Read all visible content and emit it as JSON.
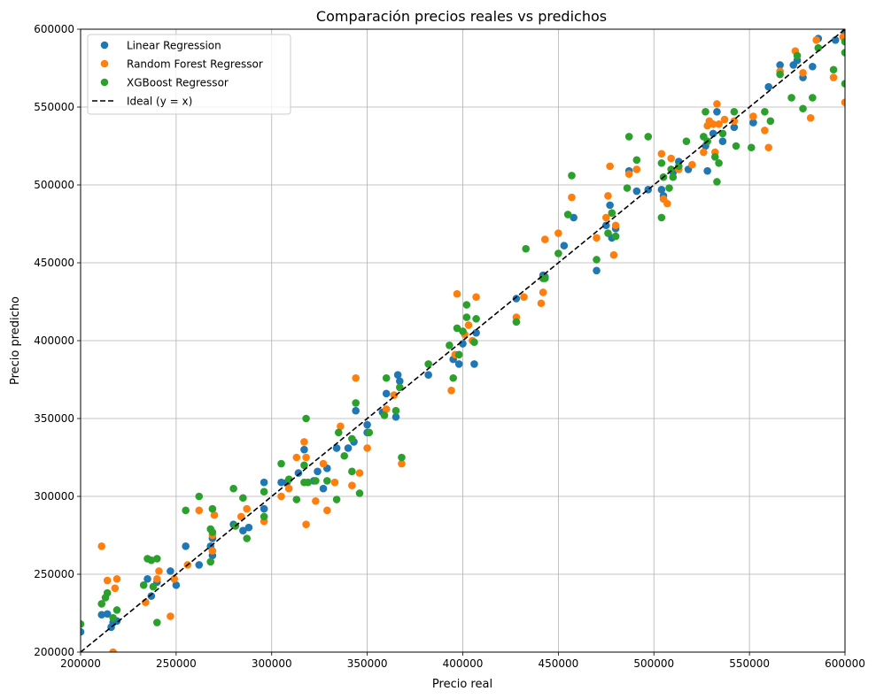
{
  "chart_data": {
    "type": "scatter",
    "title": "Comparación precios reales vs predichos",
    "xlabel": "Precio real",
    "ylabel": "Precio predicho",
    "xlim": [
      200000,
      600000
    ],
    "ylim": [
      200000,
      600000
    ],
    "xticks": [
      200000,
      250000,
      300000,
      350000,
      400000,
      450000,
      500000,
      550000,
      600000
    ],
    "yticks": [
      200000,
      250000,
      300000,
      350000,
      400000,
      450000,
      500000,
      550000,
      600000
    ],
    "grid": true,
    "legend_position": "top-left",
    "series": [
      {
        "name": "Linear Regression",
        "color": "#1f77b4",
        "points": [
          [
            200000,
            213000
          ],
          [
            211000,
            224000
          ],
          [
            214000,
            224500
          ],
          [
            216000,
            216000
          ],
          [
            217000,
            219000
          ],
          [
            219000,
            220000
          ],
          [
            235000,
            247000
          ],
          [
            237000,
            236000
          ],
          [
            240000,
            245000
          ],
          [
            247000,
            252000
          ],
          [
            250000,
            243000
          ],
          [
            255000,
            268000
          ],
          [
            262000,
            256000
          ],
          [
            268000,
            268000
          ],
          [
            269000,
            273000
          ],
          [
            269000,
            262000
          ],
          [
            280000,
            282000
          ],
          [
            285000,
            278000
          ],
          [
            288000,
            280000
          ],
          [
            296000,
            309000
          ],
          [
            296000,
            292000
          ],
          [
            305000,
            309000
          ],
          [
            308000,
            309000
          ],
          [
            314000,
            315000
          ],
          [
            317000,
            330000
          ],
          [
            322000,
            310000
          ],
          [
            324000,
            316000
          ],
          [
            327000,
            305000
          ],
          [
            329000,
            318000
          ],
          [
            334000,
            331000
          ],
          [
            340000,
            331000
          ],
          [
            343000,
            335000
          ],
          [
            344000,
            355000
          ],
          [
            350000,
            346000
          ],
          [
            350000,
            341000
          ],
          [
            358000,
            354000
          ],
          [
            360000,
            366000
          ],
          [
            365000,
            351000
          ],
          [
            366000,
            378000
          ],
          [
            367000,
            374000
          ],
          [
            382000,
            378000
          ],
          [
            395000,
            388000
          ],
          [
            398000,
            385000
          ],
          [
            400000,
            398000
          ],
          [
            406000,
            385000
          ],
          [
            407000,
            405000
          ],
          [
            428000,
            427000
          ],
          [
            442000,
            442000
          ],
          [
            443000,
            441000
          ],
          [
            453000,
            461000
          ],
          [
            458000,
            479000
          ],
          [
            470000,
            445000
          ],
          [
            475000,
            474000
          ],
          [
            477000,
            487000
          ],
          [
            478000,
            466000
          ],
          [
            480000,
            472000
          ],
          [
            487000,
            509000
          ],
          [
            491000,
            496000
          ],
          [
            497000,
            497000
          ],
          [
            504000,
            497000
          ],
          [
            505000,
            493000
          ],
          [
            510000,
            508000
          ],
          [
            513000,
            515000
          ],
          [
            518000,
            510000
          ],
          [
            527000,
            525000
          ],
          [
            528000,
            509000
          ],
          [
            531000,
            533000
          ],
          [
            533000,
            547000
          ],
          [
            536000,
            528000
          ],
          [
            542000,
            537000
          ],
          [
            552000,
            540000
          ],
          [
            560000,
            563000
          ],
          [
            566000,
            577000
          ],
          [
            573000,
            577000
          ],
          [
            575000,
            580000
          ],
          [
            578000,
            569000
          ],
          [
            583000,
            576000
          ],
          [
            586000,
            594000
          ],
          [
            595000,
            593000
          ],
          [
            600000,
            598000
          ]
        ]
      },
      {
        "name": "Random Forest Regressor",
        "color": "#ff7f0e",
        "points": [
          [
            211000,
            268000
          ],
          [
            214000,
            246000
          ],
          [
            217000,
            200000
          ],
          [
            218000,
            241000
          ],
          [
            219000,
            247000
          ],
          [
            234000,
            232000
          ],
          [
            240000,
            247000
          ],
          [
            241000,
            252000
          ],
          [
            247000,
            223000
          ],
          [
            249000,
            247000
          ],
          [
            256000,
            256000
          ],
          [
            262000,
            291000
          ],
          [
            269000,
            275000
          ],
          [
            269000,
            265000
          ],
          [
            270000,
            288000
          ],
          [
            284000,
            287000
          ],
          [
            287000,
            292000
          ],
          [
            296000,
            284000
          ],
          [
            305000,
            300000
          ],
          [
            309000,
            305000
          ],
          [
            313000,
            325000
          ],
          [
            317000,
            335000
          ],
          [
            318000,
            282000
          ],
          [
            318000,
            325000
          ],
          [
            323000,
            297000
          ],
          [
            327000,
            321000
          ],
          [
            329000,
            291000
          ],
          [
            333000,
            309000
          ],
          [
            336000,
            345000
          ],
          [
            342000,
            307000
          ],
          [
            344000,
            376000
          ],
          [
            346000,
            315000
          ],
          [
            350000,
            331000
          ],
          [
            360000,
            356000
          ],
          [
            364000,
            365000
          ],
          [
            368000,
            321000
          ],
          [
            394000,
            368000
          ],
          [
            396000,
            391000
          ],
          [
            397000,
            430000
          ],
          [
            401000,
            404000
          ],
          [
            403000,
            410000
          ],
          [
            405000,
            400000
          ],
          [
            407000,
            428000
          ],
          [
            428000,
            415000
          ],
          [
            432000,
            428000
          ],
          [
            441000,
            424000
          ],
          [
            442000,
            431000
          ],
          [
            443000,
            465000
          ],
          [
            450000,
            469000
          ],
          [
            457000,
            492000
          ],
          [
            470000,
            466000
          ],
          [
            475000,
            479000
          ],
          [
            476000,
            493000
          ],
          [
            477000,
            512000
          ],
          [
            479000,
            455000
          ],
          [
            480000,
            474000
          ],
          [
            487000,
            507000
          ],
          [
            491000,
            510000
          ],
          [
            504000,
            520000
          ],
          [
            505000,
            491000
          ],
          [
            507000,
            488000
          ],
          [
            509000,
            517000
          ],
          [
            513000,
            510000
          ],
          [
            520000,
            513000
          ],
          [
            526000,
            521000
          ],
          [
            528000,
            538000
          ],
          [
            529000,
            541000
          ],
          [
            531000,
            539000
          ],
          [
            532000,
            521000
          ],
          [
            533000,
            552000
          ],
          [
            534000,
            539000
          ],
          [
            537000,
            542000
          ],
          [
            542000,
            541000
          ],
          [
            552000,
            544000
          ],
          [
            558000,
            535000
          ],
          [
            560000,
            524000
          ],
          [
            566000,
            573000
          ],
          [
            574000,
            586000
          ],
          [
            578000,
            572000
          ],
          [
            582000,
            543000
          ],
          [
            585000,
            593000
          ],
          [
            594000,
            569000
          ],
          [
            599000,
            595000
          ],
          [
            600000,
            553000
          ]
        ]
      },
      {
        "name": "XGBoost Regressor",
        "color": "#2ca02c",
        "points": [
          [
            200000,
            218000
          ],
          [
            211000,
            231000
          ],
          [
            213000,
            235000
          ],
          [
            214000,
            238000
          ],
          [
            217000,
            222000
          ],
          [
            219000,
            227000
          ],
          [
            233000,
            243000
          ],
          [
            235000,
            260000
          ],
          [
            237000,
            259000
          ],
          [
            238000,
            242000
          ],
          [
            240000,
            260000
          ],
          [
            240000,
            219000
          ],
          [
            255000,
            291000
          ],
          [
            262000,
            300000
          ],
          [
            268000,
            258000
          ],
          [
            268000,
            279000
          ],
          [
            269000,
            292000
          ],
          [
            269000,
            277000
          ],
          [
            280000,
            305000
          ],
          [
            281000,
            281000
          ],
          [
            285000,
            299000
          ],
          [
            287000,
            273000
          ],
          [
            296000,
            287000
          ],
          [
            296000,
            303000
          ],
          [
            305000,
            321000
          ],
          [
            309000,
            311000
          ],
          [
            313000,
            298000
          ],
          [
            317000,
            309000
          ],
          [
            317000,
            320000
          ],
          [
            318000,
            350000
          ],
          [
            319000,
            309000
          ],
          [
            323000,
            310000
          ],
          [
            329000,
            310000
          ],
          [
            334000,
            298000
          ],
          [
            335000,
            341000
          ],
          [
            338000,
            326000
          ],
          [
            342000,
            337000
          ],
          [
            342000,
            316000
          ],
          [
            344000,
            360000
          ],
          [
            346000,
            302000
          ],
          [
            351000,
            341000
          ],
          [
            359000,
            352000
          ],
          [
            360000,
            376000
          ],
          [
            365000,
            355000
          ],
          [
            367000,
            370000
          ],
          [
            368000,
            325000
          ],
          [
            382000,
            385000
          ],
          [
            393000,
            397000
          ],
          [
            395000,
            376000
          ],
          [
            397000,
            408000
          ],
          [
            398000,
            391000
          ],
          [
            400000,
            406000
          ],
          [
            402000,
            415000
          ],
          [
            402000,
            423000
          ],
          [
            406000,
            399000
          ],
          [
            407000,
            414000
          ],
          [
            428000,
            412000
          ],
          [
            433000,
            459000
          ],
          [
            442000,
            440000
          ],
          [
            443000,
            440000
          ],
          [
            450000,
            456000
          ],
          [
            455000,
            481000
          ],
          [
            457000,
            506000
          ],
          [
            470000,
            452000
          ],
          [
            476000,
            469000
          ],
          [
            478000,
            482000
          ],
          [
            480000,
            467000
          ],
          [
            486000,
            498000
          ],
          [
            487000,
            531000
          ],
          [
            491000,
            516000
          ],
          [
            497000,
            531000
          ],
          [
            504000,
            479000
          ],
          [
            504000,
            514000
          ],
          [
            505000,
            505000
          ],
          [
            508000,
            498000
          ],
          [
            509000,
            510000
          ],
          [
            510000,
            505000
          ],
          [
            513000,
            512000
          ],
          [
            517000,
            528000
          ],
          [
            526000,
            531000
          ],
          [
            527000,
            547000
          ],
          [
            528000,
            528000
          ],
          [
            532000,
            518000
          ],
          [
            533000,
            502000
          ],
          [
            534000,
            514000
          ],
          [
            536000,
            533000
          ],
          [
            542000,
            547000
          ],
          [
            543000,
            525000
          ],
          [
            551000,
            524000
          ],
          [
            558000,
            547000
          ],
          [
            561000,
            541000
          ],
          [
            566000,
            571000
          ],
          [
            572000,
            556000
          ],
          [
            575000,
            583000
          ],
          [
            578000,
            549000
          ],
          [
            583000,
            556000
          ],
          [
            586000,
            588000
          ],
          [
            594000,
            574000
          ],
          [
            600000,
            592000
          ],
          [
            600000,
            565000
          ],
          [
            600000,
            585000
          ]
        ]
      },
      {
        "name": "Ideal (y = x)",
        "color": "#000000",
        "line": true,
        "points": [
          [
            200000,
            200000
          ],
          [
            600000,
            600000
          ]
        ]
      }
    ]
  }
}
